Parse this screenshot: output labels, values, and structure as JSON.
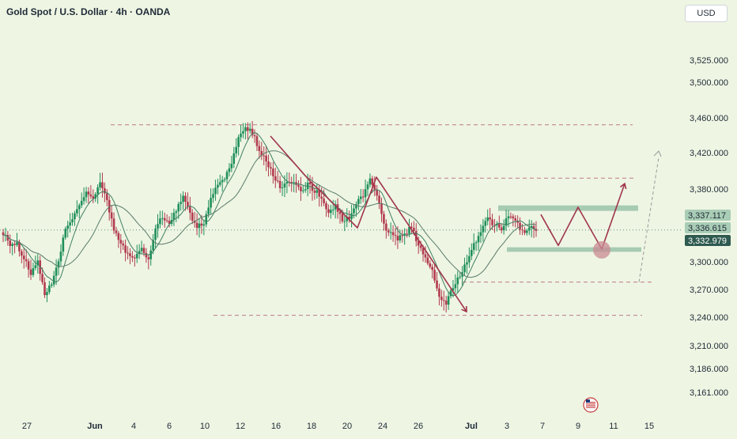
{
  "header": {
    "title": "Gold Spot / U.S. Dollar · 4h · OANDA",
    "currency_button": "USD"
  },
  "colors": {
    "background": "#eef5e3",
    "bull": "#1f8f5a",
    "bear": "#b23a4e",
    "ma_fast": "#3f7f62",
    "ma_slow": "#5a7b6a",
    "arrows": "#a0354b",
    "zone": "#9fc7ad",
    "dashed": "#c07a86",
    "axis_text": "#1f2a37"
  },
  "icons": {
    "flag": "us-flag-icon",
    "target": "target-circle-icon"
  },
  "chart_data": {
    "type": "candlestick",
    "symbol": "Gold Spot / U.S. Dollar",
    "interval": "4h",
    "source": "OANDA",
    "price_axis": {
      "ticks": [
        3525,
        3500,
        3460,
        3420,
        3380,
        3300,
        3270,
        3240,
        3210,
        3186,
        3161
      ],
      "tick_labels": [
        "3,525.000",
        "3,500.000",
        "3,460.000",
        "3,420.000",
        "3,380.000",
        "3,300.000",
        "3,270.000",
        "3,240.000",
        "3,210.000",
        "3,186.000",
        "3,161.000"
      ],
      "range": [
        3140,
        3545
      ]
    },
    "time_axis": {
      "labels": [
        "27",
        "Jun",
        "4",
        "6",
        "10",
        "12",
        "16",
        "18",
        "20",
        "24",
        "26",
        "Jul",
        "3",
        "7",
        "9",
        "11",
        "15"
      ],
      "bold": [
        "Jun",
        "Jul"
      ]
    },
    "price_badges": [
      {
        "label": "3,337.117",
        "value": 3337.117,
        "style": "light"
      },
      {
        "label": "3,336.615",
        "value": 3336.615,
        "style": "light"
      },
      {
        "label": "3,332.979",
        "value": 3332.979,
        "style": "dark"
      }
    ],
    "reference_line": 3335,
    "levels": {
      "top_resistance": 3452,
      "range_high": 3392,
      "range_low": 3278,
      "bottom_support": 3242
    },
    "zones": {
      "resistance_zone": [
        3356,
        3362
      ],
      "support_zone": [
        3311,
        3316
      ]
    },
    "anchors": [
      3332,
      3318,
      3320,
      3303,
      3288,
      3300,
      3265,
      3275,
      3300,
      3338,
      3345,
      3362,
      3375,
      3372,
      3385,
      3366,
      3336,
      3318,
      3310,
      3302,
      3315,
      3300,
      3338,
      3350,
      3342,
      3358,
      3372,
      3352,
      3338,
      3344,
      3368,
      3385,
      3392,
      3410,
      3438,
      3450,
      3442,
      3424,
      3410,
      3395,
      3382,
      3390,
      3386,
      3378,
      3385,
      3378,
      3372,
      3355,
      3362,
      3345,
      3350,
      3364,
      3372,
      3392,
      3375,
      3340,
      3330,
      3326,
      3328,
      3340,
      3318,
      3303,
      3290,
      3262,
      3255,
      3272,
      3285,
      3302,
      3318,
      3335,
      3348,
      3340,
      3336,
      3350,
      3345,
      3332,
      3338,
      3334
    ],
    "projection": {
      "zigzag": [
        3352,
        3318,
        3360,
        3314,
        3386
      ],
      "dashed_channel": [
        3278,
        3420
      ]
    }
  }
}
